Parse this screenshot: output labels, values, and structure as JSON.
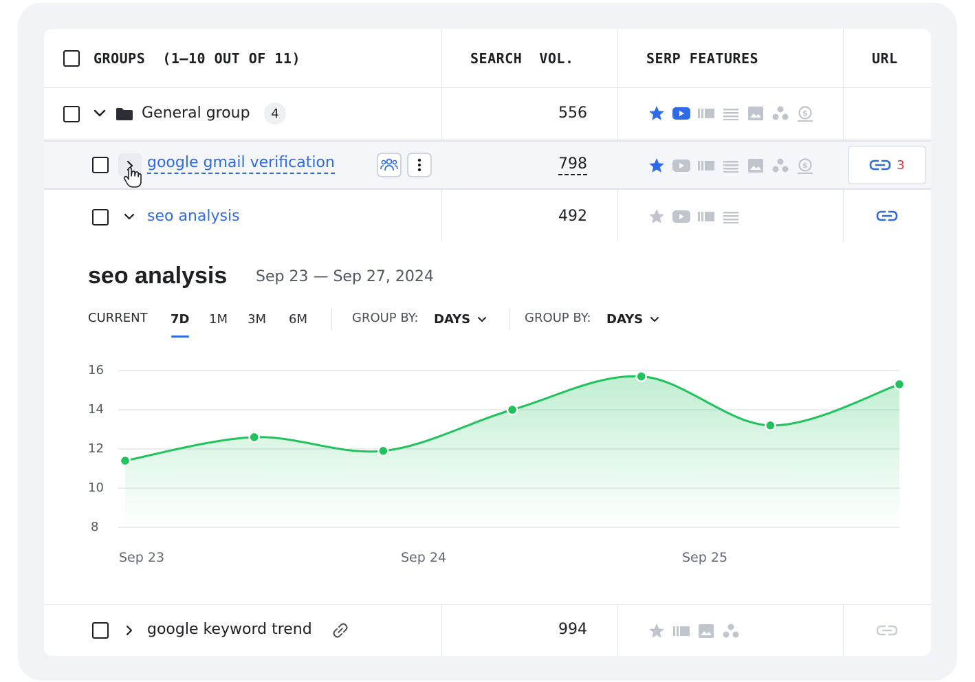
{
  "header": {
    "groups": "GROUPS  (1–10 OUT OF 11)",
    "search_vol": "SEARCH  VOL.",
    "serp": "SERP FEATURES",
    "url": "URL"
  },
  "rows": [
    {
      "label": "General group",
      "count": "4",
      "volume": "556"
    },
    {
      "label": "google gmail verification",
      "volume": "798",
      "url_count": "3"
    },
    {
      "label": "seo analysis",
      "volume": "492"
    },
    {
      "label": "google keyword trend",
      "volume": "994"
    }
  ],
  "chart": {
    "title": "seo analysis",
    "date_range": "Sep 23 — Sep 27, 2024",
    "tabs": [
      "CURRENT",
      "7D",
      "1M",
      "3M",
      "6M"
    ],
    "active_tab": "7D",
    "group_by_1": {
      "label": "GROUP BY:",
      "value": "DAYS"
    },
    "group_by_2": {
      "label": "GROUP BY:",
      "value": "DAYS"
    }
  },
  "chart_data": {
    "type": "area",
    "x_tick_labels": [
      "Sep 23",
      "Sep 24",
      "Sep 25"
    ],
    "y_ticks": [
      16,
      14,
      12,
      10,
      8
    ],
    "ylim": [
      8,
      16
    ],
    "series": [
      {
        "values": [
          11.4,
          12.6,
          11.9,
          14.0,
          15.7,
          13.2,
          15.3
        ]
      }
    ],
    "colors": {
      "line": "#1fc35c",
      "fill": "#1fc35c"
    },
    "grid": true
  },
  "colors": {
    "link": "#2f6be6",
    "accent_green": "#1fc35c",
    "badge_red": "#d33a3a",
    "icon_gray": "#b9bec7"
  }
}
